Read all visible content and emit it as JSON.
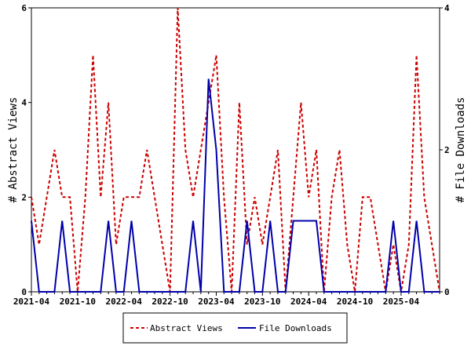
{
  "chart_data": {
    "type": "line",
    "ylabel_left": "# Abstract Views",
    "ylabel_right": "# File Downloads",
    "ylim_left": [
      0,
      6
    ],
    "ylim_right": [
      0,
      4
    ],
    "yticks_left": [
      "0",
      "2",
      "4",
      "6"
    ],
    "yticks_right": [
      "0",
      "2",
      "4"
    ],
    "x_tick_labels": [
      "2021-04",
      "2021-10",
      "2022-04",
      "2022-10",
      "2023-04",
      "2023-10",
      "2024-04",
      "2024-10",
      "2025-04"
    ],
    "x_months": [
      "2021-04",
      "2021-05",
      "2021-06",
      "2021-07",
      "2021-08",
      "2021-09",
      "2021-10",
      "2021-11",
      "2021-12",
      "2022-01",
      "2022-02",
      "2022-03",
      "2022-04",
      "2022-05",
      "2022-06",
      "2022-07",
      "2022-08",
      "2022-09",
      "2022-10",
      "2022-11",
      "2022-12",
      "2023-01",
      "2023-02",
      "2023-03",
      "2023-04",
      "2023-05",
      "2023-06",
      "2023-07",
      "2023-08",
      "2023-09",
      "2023-10",
      "2023-11",
      "2023-12",
      "2024-01",
      "2024-02",
      "2024-03",
      "2024-04",
      "2024-05",
      "2024-06",
      "2024-07",
      "2024-08",
      "2024-09",
      "2024-10",
      "2024-11",
      "2024-12",
      "2025-01",
      "2025-02",
      "2025-03",
      "2025-04",
      "2025-05",
      "2025-06",
      "2025-07",
      "2025-08",
      "2025-09"
    ],
    "series": [
      {
        "name": "Abstract Views",
        "axis": "left",
        "color": "#cc0000",
        "dash": "dashed",
        "values": [
          2,
          1,
          2,
          3,
          2,
          2,
          0,
          2,
          5,
          2,
          4,
          1,
          2,
          2,
          2,
          3,
          2,
          1,
          0,
          6,
          3,
          2,
          3,
          4,
          5,
          2,
          0,
          4,
          1,
          2,
          1,
          2,
          3,
          0,
          2,
          4,
          2,
          3,
          0,
          2,
          3,
          1,
          0,
          2,
          2,
          1,
          0,
          1,
          0,
          1,
          5,
          2,
          1,
          0
        ]
      },
      {
        "name": "File Downloads",
        "axis": "right",
        "color": "#0000aa",
        "dash": "solid",
        "values": [
          1,
          0,
          0,
          0,
          1,
          0,
          0,
          0,
          0,
          0,
          1,
          0,
          0,
          1,
          0,
          0,
          0,
          0,
          0,
          0,
          0,
          1,
          0,
          3,
          2,
          0,
          0,
          0,
          1,
          0,
          0,
          1,
          0,
          0,
          1,
          1,
          1,
          1,
          0,
          0,
          0,
          0,
          0,
          0,
          0,
          0,
          0,
          1,
          0,
          0,
          1,
          0,
          0,
          0
        ]
      }
    ]
  }
}
